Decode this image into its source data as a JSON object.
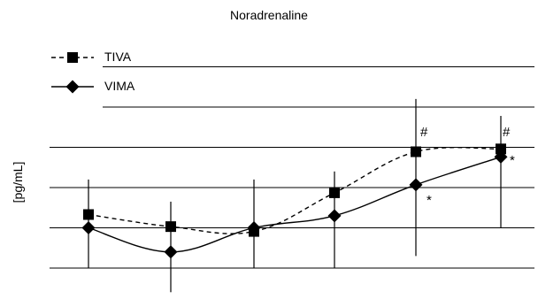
{
  "chart_data": {
    "type": "line",
    "title": "Noradrenaline",
    "ylabel": "[pg/mL]",
    "xlabel": "",
    "grid": true,
    "legend_placement": "top-left",
    "x": [
      1,
      2,
      3,
      4,
      5,
      6
    ],
    "ylim": [
      0,
      5
    ],
    "series": [
      {
        "name": "TIVA",
        "line_style": "dashed",
        "marker": "square",
        "color": "#000000",
        "values": [
          1.33,
          1.03,
          0.91,
          1.87,
          2.89,
          2.96
        ],
        "annotations": [
          "",
          "",
          "",
          "",
          "#",
          "#"
        ]
      },
      {
        "name": "VIMA",
        "line_style": "solid",
        "marker": "diamond",
        "color": "#000000",
        "values": [
          1.0,
          0.4,
          1.0,
          1.3,
          2.07,
          2.76
        ],
        "annotations": [
          "",
          "",
          "",
          "",
          "*",
          "*"
        ]
      }
    ],
    "error_bars": [
      {
        "x": 1,
        "low": 0,
        "high": 2.2
      },
      {
        "x": 2,
        "low": -0.6,
        "high": 1.65
      },
      {
        "x": 3,
        "low": 0,
        "high": 2.2
      },
      {
        "x": 4,
        "low": 0,
        "high": 2.4
      },
      {
        "x": 5,
        "low": 0.3,
        "high": 4.2
      },
      {
        "x": 6,
        "low": 1.0,
        "high": 3.78
      }
    ]
  }
}
